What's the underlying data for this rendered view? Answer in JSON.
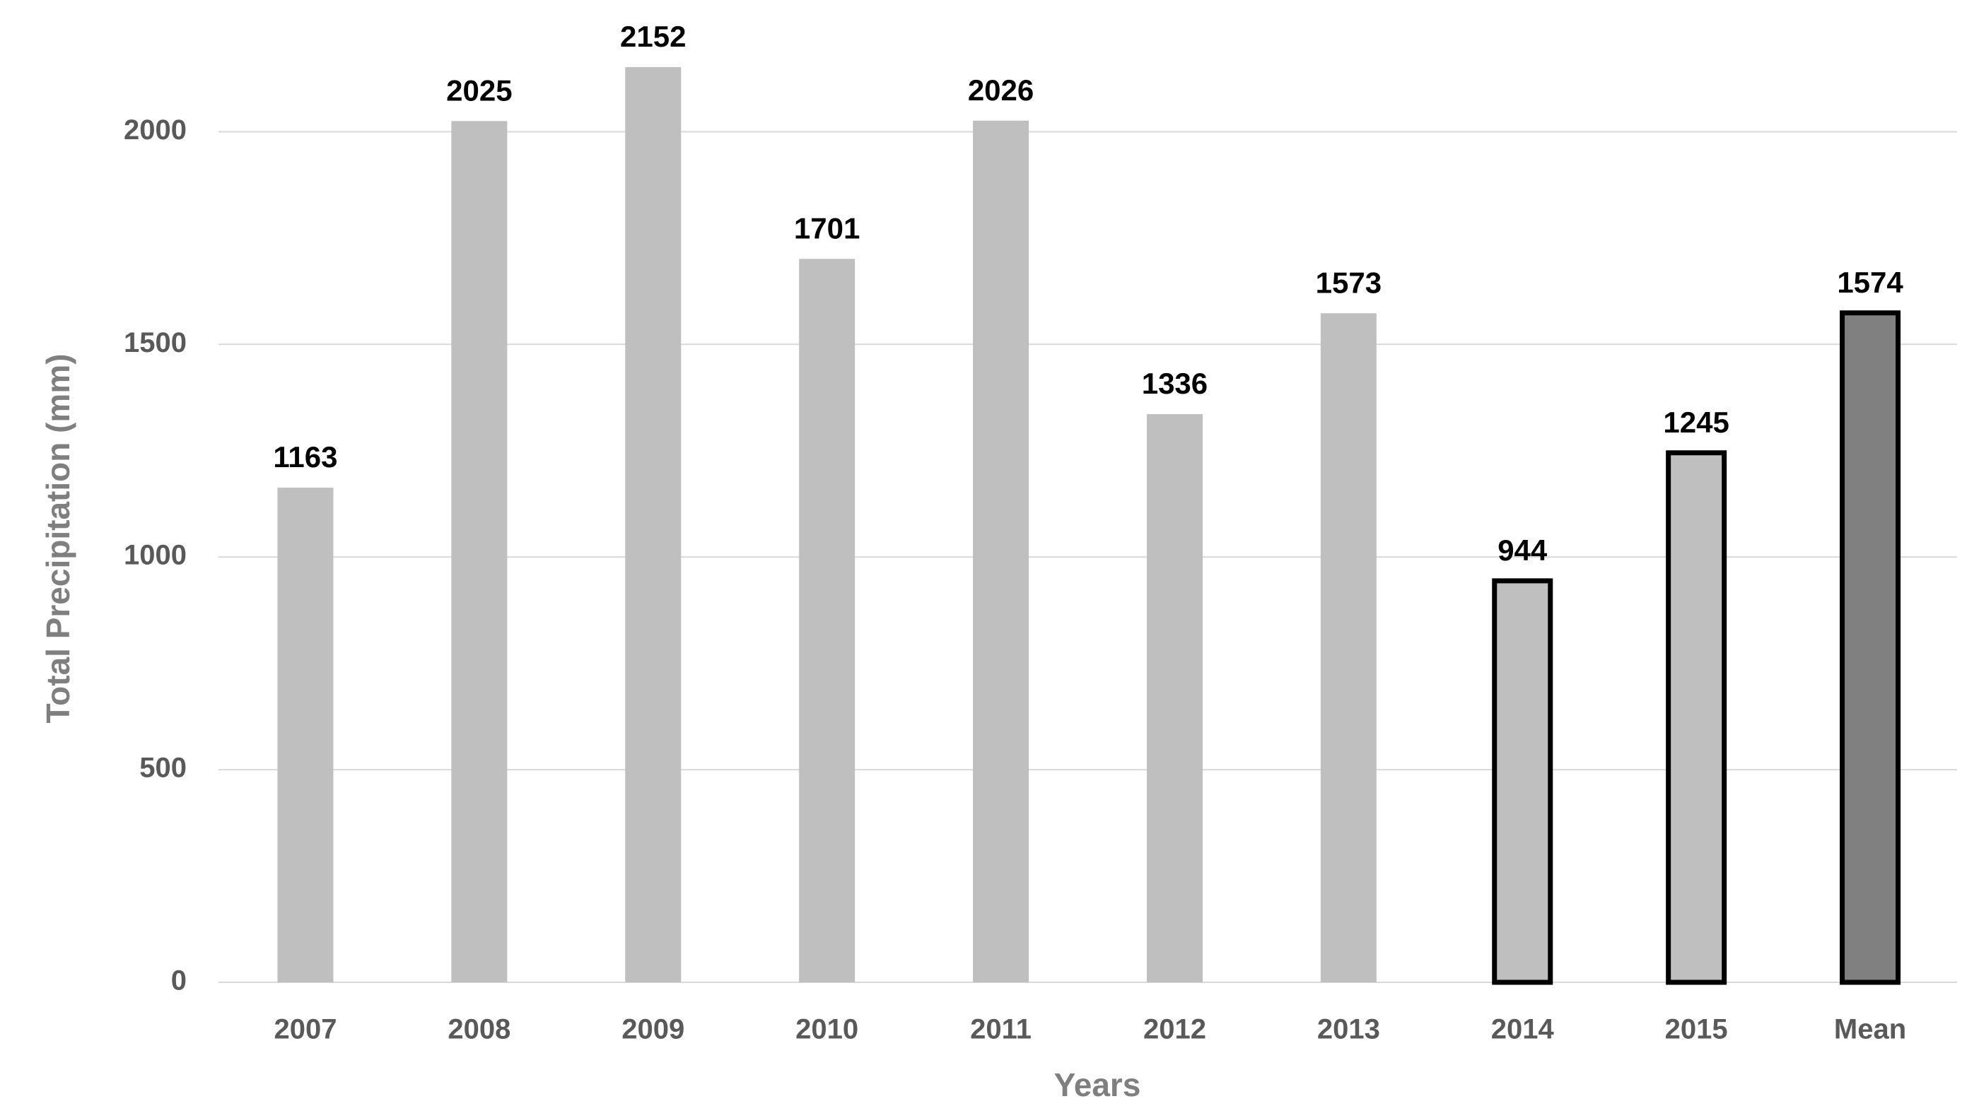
{
  "chart_data": {
    "type": "bar",
    "categories": [
      "2007",
      "2008",
      "2009",
      "2010",
      "2011",
      "2012",
      "2013",
      "2014",
      "2015",
      "Mean"
    ],
    "values": [
      1163,
      2025,
      2152,
      1701,
      2026,
      1336,
      1573,
      944,
      1245,
      1574
    ],
    "colors": [
      "#bfbfbf",
      "#bfbfbf",
      "#bfbfbf",
      "#bfbfbf",
      "#bfbfbf",
      "#bfbfbf",
      "#bfbfbf",
      "#bfbfbf",
      "#bfbfbf",
      "#808080"
    ],
    "edge_colors": [
      null,
      null,
      null,
      null,
      null,
      null,
      null,
      "#000000",
      "#000000",
      "#000000"
    ],
    "xlabel": "Years",
    "ylabel": "Total Precipitation (mm)",
    "ylim": [
      0,
      2200
    ],
    "yticks": [
      0,
      500,
      1000,
      1500,
      2000
    ],
    "grid": true
  }
}
